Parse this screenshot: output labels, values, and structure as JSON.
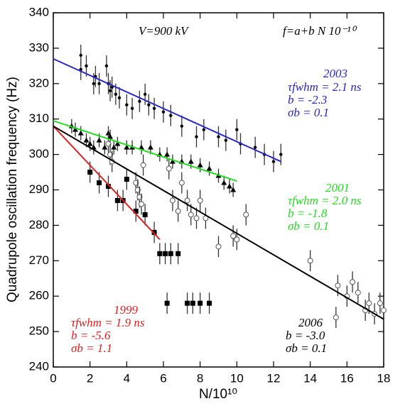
{
  "chart_data": {
    "type": "scatter",
    "x_label": "N/10¹⁰",
    "y_label": "Quadrupole oscillation frequency (Hz)",
    "annotations": [
      "V=900 kV",
      "f=a+b N 10⁻¹⁰"
    ],
    "xlim": [
      0,
      18
    ],
    "xticks": [
      0,
      2,
      4,
      6,
      8,
      10,
      12,
      14,
      16,
      18
    ],
    "ylim": [
      240,
      340
    ],
    "yticks": [
      240,
      250,
      260,
      270,
      280,
      290,
      300,
      310,
      320,
      330,
      340
    ],
    "series": [
      {
        "name": "2003",
        "color": "#2828c8",
        "marker": "dot",
        "error": 3,
        "tau": "τfwhm = 2.1 ns",
        "b": "b = -2.3",
        "sigma_b": "σb = 0.1",
        "x": [
          1.5,
          1.5,
          1.8,
          2.2,
          2.3,
          2.5,
          2.9,
          3.0,
          3.1,
          3.2,
          3.4,
          3.6,
          4.0,
          4.3,
          4.7,
          5.0,
          5.2,
          5.5,
          6.0,
          6.4,
          7.0,
          7.8,
          8.2,
          9.0,
          9.4,
          10.0,
          10.2,
          11.0,
          11.5,
          12.0,
          12.4
        ],
        "values": [
          328,
          324,
          325,
          320,
          322,
          320,
          325,
          320,
          318,
          319,
          317,
          316,
          314,
          313,
          315,
          317,
          314,
          313,
          312,
          311,
          308,
          305,
          307,
          305,
          304,
          307,
          303,
          302,
          300,
          298,
          300
        ],
        "fit": {
          "x": [
            0,
            12.4
          ],
          "y": [
            327,
            298
          ]
        }
      },
      {
        "name": "2001",
        "color": "#22dd22",
        "marker": "triangle",
        "error": 2,
        "tau": "τfwhm = 2.0 ns",
        "b": "b = -1.8",
        "sigma_b": "σb = 0.1",
        "x": [
          1.0,
          1.2,
          1.5,
          1.8,
          2.0,
          2.2,
          2.5,
          2.8,
          3.0,
          3.1,
          3.3,
          3.5,
          4.0,
          4.3,
          4.8,
          5.3,
          5.8,
          6.2,
          6.5,
          7.0,
          7.5,
          8.0,
          8.5,
          9.0,
          9.3,
          9.6,
          9.8
        ],
        "values": [
          308,
          307,
          306,
          304,
          303,
          302,
          304,
          302,
          306,
          305,
          302,
          303,
          302,
          302,
          302,
          302,
          300,
          300,
          298,
          298,
          298,
          297,
          296,
          294,
          292,
          291,
          290
        ],
        "fit": {
          "x": [
            0,
            10
          ],
          "y": [
            309.5,
            292.5
          ]
        }
      },
      {
        "name": "1999",
        "color": "#e02020",
        "marker": "square",
        "error": 3,
        "tau": "τfwhm = 1.9 ns",
        "b": "b = -5.6",
        "sigma_b": "σb = 1.1",
        "x": [
          2.0,
          2.5,
          3.0,
          3.5,
          3.8,
          4.0,
          4.5,
          5.0,
          5.5,
          5.8,
          6.1,
          6.4,
          6.8,
          6.2,
          7.3,
          7.6,
          8.0,
          8.5
        ],
        "values": [
          295,
          292,
          291,
          287,
          287,
          293,
          284,
          283,
          278,
          272,
          272,
          272,
          272,
          258,
          258,
          258,
          258,
          258
        ],
        "fit": {
          "x": [
            0,
            5.8
          ],
          "y": [
            308,
            276
          ]
        }
      },
      {
        "name": "2006",
        "color": "#000000",
        "marker": "circle",
        "error": 3,
        "b": "b = -3.0",
        "sigma_b": "σb = 0.1",
        "x": [
          3.0,
          3.1,
          3.2,
          4.5,
          4.6,
          4.7,
          4.8,
          4.9,
          6.3,
          6.5,
          6.8,
          7.0,
          7.3,
          7.5,
          7.8,
          8.0,
          8.3,
          9.0,
          9.8,
          10.0,
          10.5,
          14.0,
          15.4,
          15.5,
          16.0,
          16.3,
          16.6,
          17.0,
          17.2,
          17.5,
          17.8,
          18.0
        ],
        "values": [
          303,
          300,
          298,
          292,
          290,
          288,
          286,
          297,
          296,
          287,
          284,
          292,
          287,
          283,
          282,
          287,
          282,
          274,
          277,
          276,
          283,
          270,
          254,
          263,
          260,
          264,
          261,
          256,
          258,
          255,
          258,
          256
        ],
        "fit": {
          "x": [
            0,
            18
          ],
          "y": [
            308,
            253.5
          ]
        }
      }
    ]
  }
}
